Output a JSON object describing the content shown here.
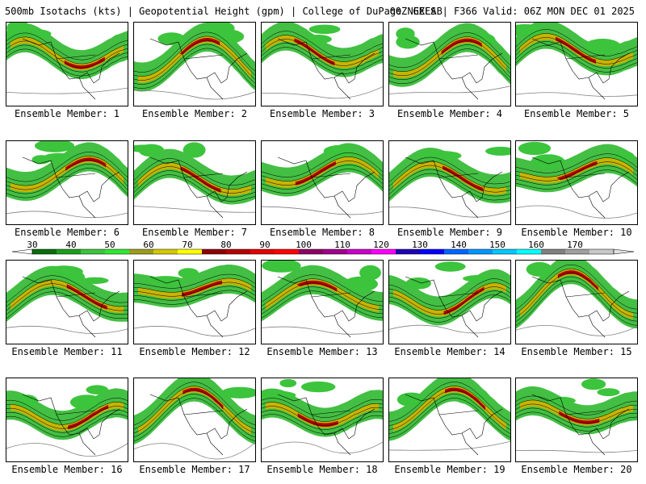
{
  "header": {
    "title": "500mb Isotachs (kts) | Geopotential Height (gpm) | College of DuPage NEXLAB",
    "run_info": "00Z GEFS | F366 Valid: 06Z MON DEC 01 2025"
  },
  "panels": [
    {
      "label": "Ensemble Member: 1"
    },
    {
      "label": "Ensemble Member: 2"
    },
    {
      "label": "Ensemble Member: 3"
    },
    {
      "label": "Ensemble Member: 4"
    },
    {
      "label": "Ensemble Member: 5"
    },
    {
      "label": "Ensemble Member: 6"
    },
    {
      "label": "Ensemble Member: 7"
    },
    {
      "label": "Ensemble Member: 8"
    },
    {
      "label": "Ensemble Member: 9"
    },
    {
      "label": "Ensemble Member: 10"
    },
    {
      "label": "Ensemble Member: 11"
    },
    {
      "label": "Ensemble Member: 12"
    },
    {
      "label": "Ensemble Member: 13"
    },
    {
      "label": "Ensemble Member: 14"
    },
    {
      "label": "Ensemble Member: 15"
    },
    {
      "label": "Ensemble Member: 16"
    },
    {
      "label": "Ensemble Member: 17"
    },
    {
      "label": "Ensemble Member: 18"
    },
    {
      "label": "Ensemble Member: 19"
    },
    {
      "label": "Ensemble Member: 20"
    }
  ],
  "colorbar": {
    "tick_labels": [
      "30",
      "40",
      "50",
      "60",
      "70",
      "80",
      "90",
      "100",
      "110",
      "120",
      "130",
      "140",
      "150",
      "160",
      "170"
    ],
    "colors": [
      "#0a6e0a",
      "#1e9e1e",
      "#3cc43c",
      "#32e632",
      "#9c9c1e",
      "#d2c800",
      "#ffff00",
      "#8c0000",
      "#b40000",
      "#e10000",
      "#ff0000",
      "#8c0064",
      "#a0008c",
      "#c800c8",
      "#ff00ff",
      "#1e00b4",
      "#0000ff",
      "#0064ff",
      "#0096ff",
      "#00c8ff",
      "#00ffff",
      "#808080",
      "#a0a0a0",
      "#c8c8c8"
    ]
  }
}
